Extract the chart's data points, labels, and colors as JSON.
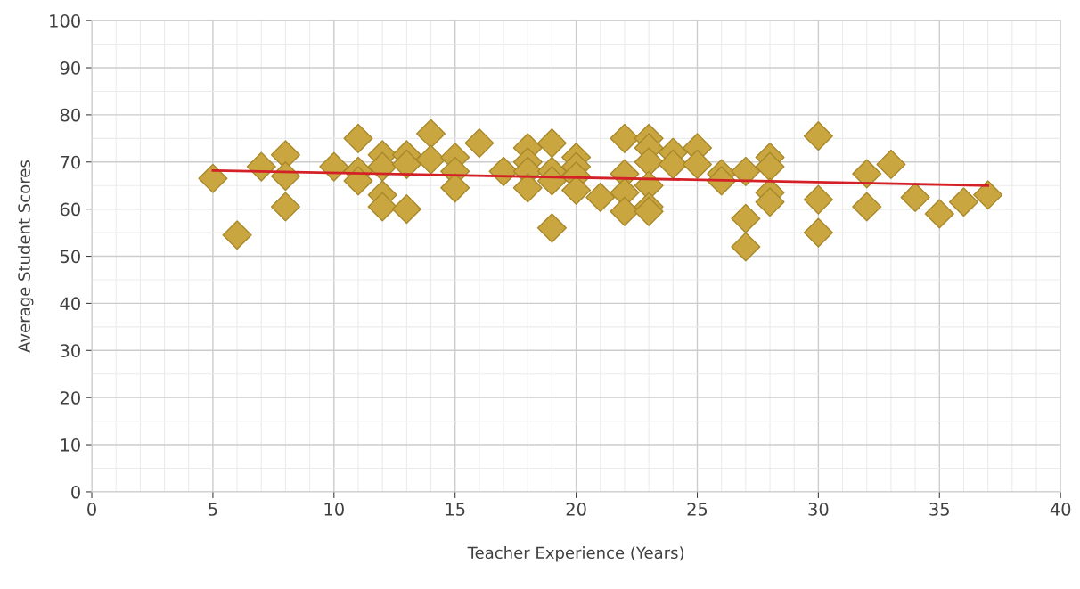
{
  "chart_data": {
    "type": "scatter",
    "xlabel": "Teacher Experience (Years)",
    "ylabel": "Average Student Scores",
    "xlim": [
      0,
      40
    ],
    "xticks": [
      0,
      5,
      10,
      15,
      20,
      25,
      30,
      35,
      40
    ],
    "ylim": [
      0,
      100
    ],
    "yticks": [
      0,
      10,
      20,
      30,
      40,
      50,
      60,
      70,
      80,
      90,
      100
    ],
    "grid": true,
    "marker": "diamond",
    "series": [
      {
        "color": "#c9a640",
        "x": [
          5,
          6,
          7,
          8,
          8,
          8,
          10,
          11,
          11,
          11,
          12,
          12,
          12,
          12,
          13,
          13,
          13,
          14,
          14,
          15,
          15,
          15,
          16,
          17,
          18,
          18,
          18,
          18,
          19,
          19,
          19,
          19,
          20,
          20,
          20,
          20,
          21,
          22,
          22,
          22,
          22,
          23,
          23,
          23,
          23,
          23,
          23,
          24,
          24,
          25,
          25,
          26,
          26,
          27,
          27,
          27,
          28,
          28,
          28,
          28,
          30,
          30,
          30,
          32,
          32,
          33,
          34,
          35,
          36,
          37
        ],
        "values": [
          66.5,
          54.5,
          69,
          71.5,
          67,
          60.5,
          69,
          75,
          68,
          66,
          71.5,
          69,
          63,
          60.5,
          71.5,
          69.5,
          60,
          76,
          70.5,
          71,
          68,
          64.5,
          74,
          68,
          73,
          70,
          68,
          64.5,
          74,
          68,
          66,
          56,
          71,
          69,
          67,
          64,
          62.5,
          75,
          67.5,
          63.5,
          59.5,
          75,
          73,
          70,
          65,
          60.5,
          59.5,
          72,
          69.5,
          73,
          69.5,
          67.5,
          66,
          68,
          58,
          52,
          71,
          69,
          63.5,
          61.5,
          75.5,
          62,
          55,
          67.5,
          60.5,
          69.5,
          62.5,
          59,
          61.5,
          63
        ]
      },
      {
        "type": "line",
        "color": "#d42027",
        "marker": "none",
        "x": [
          5,
          37
        ],
        "values": [
          68.2,
          65.0
        ]
      }
    ]
  }
}
